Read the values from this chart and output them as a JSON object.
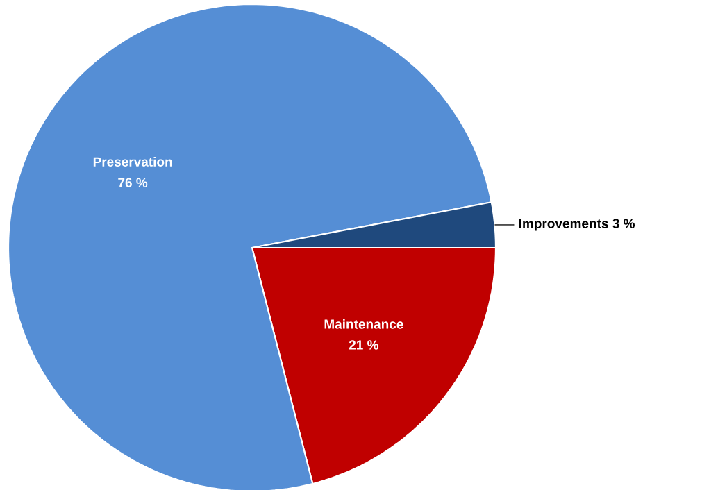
{
  "chart_data": {
    "type": "pie",
    "categories": [
      "Maintenance",
      "Preservation",
      "Improvements"
    ],
    "values": [
      21,
      76,
      3
    ],
    "value_labels": [
      "21 %",
      "76 %",
      "3 %"
    ],
    "colors": [
      "#c00000",
      "#558ed5",
      "#1f497d"
    ]
  }
}
